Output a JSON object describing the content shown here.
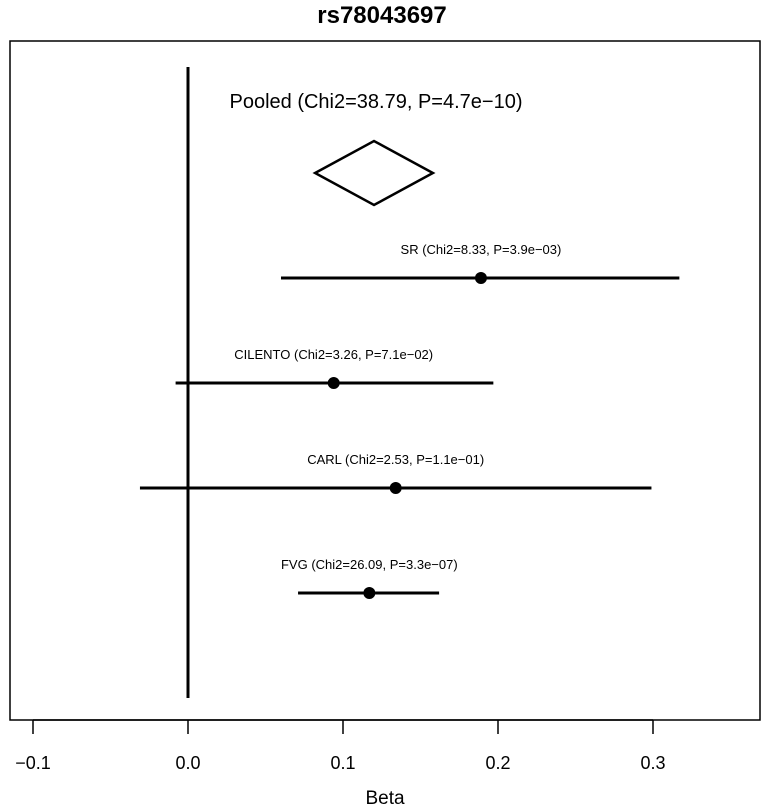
{
  "chart_data": {
    "type": "forest",
    "title": "rs78043697",
    "xlabel": "Beta",
    "xlim": [
      -0.105,
      0.365
    ],
    "xticks": [
      -0.1,
      0.0,
      0.1,
      0.2,
      0.3
    ],
    "xtick_labels": [
      "−0.1",
      "0.0",
      "0.1",
      "0.2",
      "0.3"
    ],
    "reference_line": 0.0,
    "pooled": {
      "label": "Pooled (Chi2=38.79, P=4.7e−10)",
      "beta": 0.12,
      "ci": [
        0.082,
        0.158
      ]
    },
    "studies": [
      {
        "name": "SR",
        "label": "SR (Chi2=8.33, P=3.9e−03)",
        "beta": 0.189,
        "ci": [
          0.06,
          0.317
        ]
      },
      {
        "name": "CILENTO",
        "label": "CILENTO (Chi2=3.26, P=7.1e−02)",
        "beta": 0.094,
        "ci": [
          -0.008,
          0.197
        ]
      },
      {
        "name": "CARL",
        "label": "CARL (Chi2=2.53, P=1.1e−01)",
        "beta": 0.134,
        "ci": [
          -0.031,
          0.299
        ]
      },
      {
        "name": "FVG",
        "label": "FVG (Chi2=26.09, P=3.3e−07)",
        "beta": 0.117,
        "ci": [
          0.071,
          0.162
        ]
      }
    ]
  }
}
